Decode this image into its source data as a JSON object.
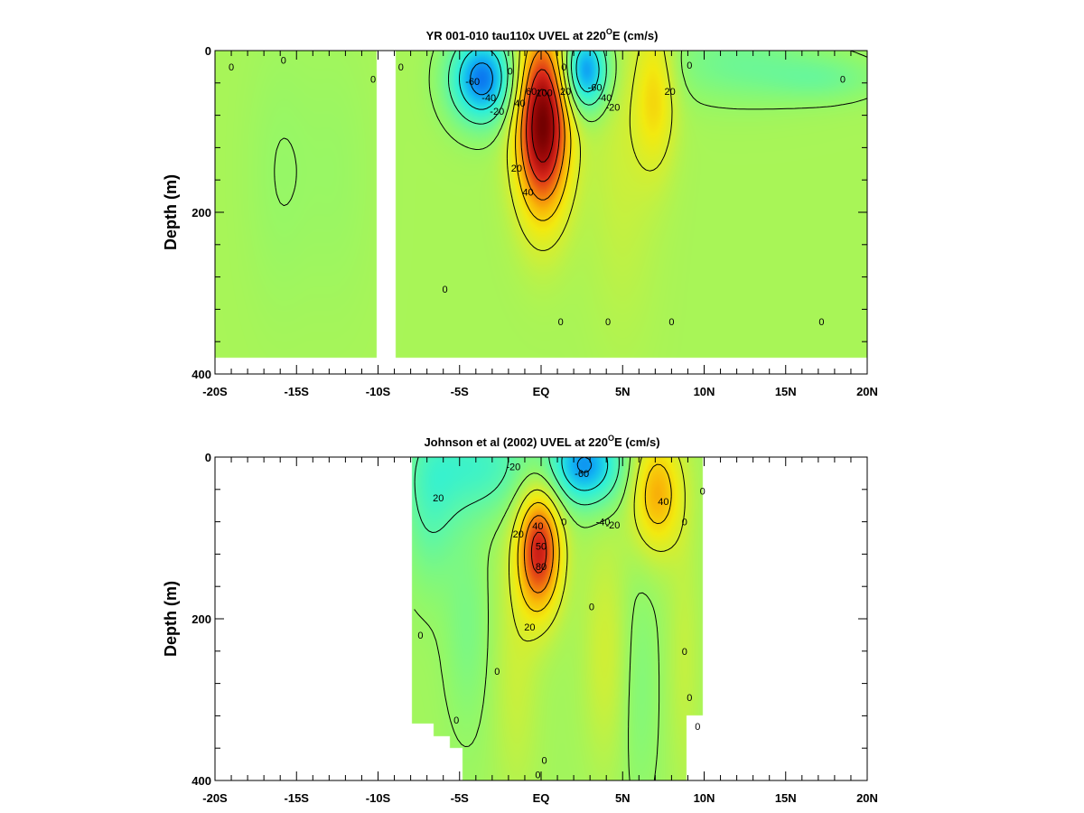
{
  "chart_data": [
    {
      "type": "heatmap",
      "title": "YR 001-010 tau110x UVEL at 220",
      "title_sup": "O",
      "title_end": "E (cm/s)",
      "xlabel": "",
      "ylabel": "Depth (m)",
      "x_ticklabels": [
        {
          "lat": -20,
          "label": "-20S"
        },
        {
          "lat": -15,
          "label": "-15S"
        },
        {
          "lat": -10,
          "label": "-10S"
        },
        {
          "lat": -5,
          "label": "-5S"
        },
        {
          "lat": 0,
          "label": "EQ"
        },
        {
          "lat": 5,
          "label": "5N"
        },
        {
          "lat": 10,
          "label": "10N"
        },
        {
          "lat": 15,
          "label": "15N"
        },
        {
          "lat": 20,
          "label": "20N"
        }
      ],
      "y_ticklabels": [
        {
          "depth": 0,
          "label": "0"
        },
        {
          "depth": 200,
          "label": "200"
        },
        {
          "depth": 400,
          "label": "400"
        }
      ],
      "xlim": [
        -20,
        20
      ],
      "ylim": [
        400,
        0
      ],
      "data_extent": {
        "depth_max": 380
      },
      "gaps": [
        {
          "lat_from": -10.1,
          "lat_to": -8.9
        }
      ],
      "background": 5,
      "features": [
        {
          "lat": 0.1,
          "depth": 90,
          "value": 115,
          "sx": 1.15,
          "sy": 78
        },
        {
          "lat": -3.6,
          "depth": 35,
          "value": -75,
          "sx": 1.4,
          "sy": 38
        },
        {
          "lat": 2.7,
          "depth": 25,
          "value": -72,
          "sx": 1.0,
          "sy": 35
        },
        {
          "lat": 7.0,
          "depth": 50,
          "value": 33,
          "sx": 0.9,
          "sy": 65
        },
        {
          "lat": 12.0,
          "depth": 15,
          "value": -18,
          "sx": 3.5,
          "sy": 35
        },
        {
          "lat": 17.5,
          "depth": 35,
          "value": -15,
          "sx": 2.5,
          "sy": 20
        },
        {
          "lat": 5.0,
          "depth": 120,
          "value": 10,
          "sx": 1.5,
          "sy": 150
        },
        {
          "lat": -16.0,
          "depth": 150,
          "value": -5,
          "sx": 1.5,
          "sy": 120
        },
        {
          "lat": -12.5,
          "depth": 150,
          "value": -4,
          "sx": 1.5,
          "sy": 120
        }
      ],
      "contour_labels": [
        {
          "lat": -19.0,
          "depth": 20,
          "text": "0"
        },
        {
          "lat": -15.8,
          "depth": 12,
          "text": "0"
        },
        {
          "lat": -10.3,
          "depth": 35,
          "text": "0"
        },
        {
          "lat": -8.6,
          "depth": 20,
          "text": "0"
        },
        {
          "lat": -4.2,
          "depth": 38,
          "text": "-60"
        },
        {
          "lat": -3.2,
          "depth": 58,
          "text": "-40"
        },
        {
          "lat": -2.7,
          "depth": 75,
          "text": "-20"
        },
        {
          "lat": -1.9,
          "depth": 25,
          "text": "0"
        },
        {
          "lat": -1.3,
          "depth": 65,
          "text": "40"
        },
        {
          "lat": -0.6,
          "depth": 50,
          "text": "60"
        },
        {
          "lat": 0.2,
          "depth": 52,
          "text": "100"
        },
        {
          "lat": -1.5,
          "depth": 145,
          "text": "20"
        },
        {
          "lat": -0.8,
          "depth": 175,
          "text": "40"
        },
        {
          "lat": 1.5,
          "depth": 50,
          "text": "20"
        },
        {
          "lat": 1.4,
          "depth": 20,
          "text": "0"
        },
        {
          "lat": 3.3,
          "depth": 45,
          "text": "-60"
        },
        {
          "lat": 3.9,
          "depth": 58,
          "text": "-40"
        },
        {
          "lat": 4.4,
          "depth": 70,
          "text": "-20"
        },
        {
          "lat": 7.9,
          "depth": 50,
          "text": "20"
        },
        {
          "lat": 9.1,
          "depth": 18,
          "text": "0"
        },
        {
          "lat": 18.5,
          "depth": 35,
          "text": "0"
        },
        {
          "lat": -5.9,
          "depth": 295,
          "text": "0"
        },
        {
          "lat": 1.2,
          "depth": 335,
          "text": "0"
        },
        {
          "lat": 4.1,
          "depth": 335,
          "text": "0"
        },
        {
          "lat": 8.0,
          "depth": 335,
          "text": "0"
        },
        {
          "lat": 17.2,
          "depth": 335,
          "text": "0"
        }
      ]
    },
    {
      "type": "heatmap",
      "title": "Johnson et al (2002) UVEL at 220",
      "title_sup": "O",
      "title_end": "E (cm/s)",
      "xlabel": "",
      "ylabel": "Depth (m)",
      "x_ticklabels": [
        {
          "lat": -20,
          "label": "-20S"
        },
        {
          "lat": -15,
          "label": "-15S"
        },
        {
          "lat": -10,
          "label": "-10S"
        },
        {
          "lat": -5,
          "label": "-5S"
        },
        {
          "lat": 0,
          "label": "EQ"
        },
        {
          "lat": 5,
          "label": "5N"
        },
        {
          "lat": 10,
          "label": "10N"
        },
        {
          "lat": 15,
          "label": "15N"
        },
        {
          "lat": 20,
          "label": "20N"
        }
      ],
      "y_ticklabels": [
        {
          "depth": 0,
          "label": "0"
        },
        {
          "depth": 200,
          "label": "200"
        },
        {
          "depth": 400,
          "label": "400"
        }
      ],
      "xlim": [
        -20,
        20
      ],
      "ylim": [
        400,
        0
      ],
      "data_extent": {
        "lat_min": -7.9,
        "lat_max": 9.9,
        "bottom": [
          {
            "lat": -7.9,
            "depth": 330
          },
          {
            "lat": -6.6,
            "depth": 330
          },
          {
            "lat": -6.6,
            "depth": 345
          },
          {
            "lat": -5.6,
            "depth": 345
          },
          {
            "lat": -5.6,
            "depth": 360
          },
          {
            "lat": -4.8,
            "depth": 360
          },
          {
            "lat": -4.8,
            "depth": 400
          },
          {
            "lat": 8.9,
            "depth": 400
          },
          {
            "lat": 8.9,
            "depth": 320
          },
          {
            "lat": 9.9,
            "depth": 320
          }
        ]
      },
      "background": 3,
      "features": [
        {
          "lat": -0.1,
          "depth": 115,
          "value": 85,
          "sx": 0.95,
          "sy": 55
        },
        {
          "lat": 2.7,
          "depth": 10,
          "value": -65,
          "sx": 1.6,
          "sy": 35
        },
        {
          "lat": -3.8,
          "depth": 10,
          "value": -32,
          "sx": 2.5,
          "sy": 45
        },
        {
          "lat": 7.1,
          "depth": 45,
          "value": 50,
          "sx": 1.1,
          "sy": 50
        },
        {
          "lat": -6.8,
          "depth": 60,
          "value": -22,
          "sx": 1.2,
          "sy": 70
        },
        {
          "lat": -4.5,
          "depth": 210,
          "value": -12,
          "sx": 1.0,
          "sy": 90
        },
        {
          "lat": -1.5,
          "depth": 260,
          "value": 12,
          "sx": 1.0,
          "sy": 120
        },
        {
          "lat": 4.0,
          "depth": 240,
          "value": 15,
          "sx": 1.0,
          "sy": 100
        },
        {
          "lat": 6.0,
          "depth": 280,
          "value": -10,
          "sx": 0.9,
          "sy": 110
        },
        {
          "lat": 8.8,
          "depth": 250,
          "value": 10,
          "sx": 0.7,
          "sy": 120
        }
      ],
      "contour_labels": [
        {
          "lat": -1.7,
          "depth": 12,
          "text": "-20"
        },
        {
          "lat": 2.5,
          "depth": 20,
          "text": "-60"
        },
        {
          "lat": -6.3,
          "depth": 50,
          "text": "20"
        },
        {
          "lat": 7.5,
          "depth": 55,
          "text": "40"
        },
        {
          "lat": 8.8,
          "depth": 80,
          "text": "0"
        },
        {
          "lat": 9.9,
          "depth": 42,
          "text": "0"
        },
        {
          "lat": -1.4,
          "depth": 95,
          "text": "20"
        },
        {
          "lat": -0.2,
          "depth": 85,
          "text": "40"
        },
        {
          "lat": 0.0,
          "depth": 110,
          "text": "50"
        },
        {
          "lat": 0.0,
          "depth": 135,
          "text": "80"
        },
        {
          "lat": 3.8,
          "depth": 80,
          "text": "-40"
        },
        {
          "lat": 4.4,
          "depth": 84,
          "text": "-20"
        },
        {
          "lat": 1.4,
          "depth": 80,
          "text": "0"
        },
        {
          "lat": -0.7,
          "depth": 210,
          "text": "20"
        },
        {
          "lat": 3.1,
          "depth": 185,
          "text": "0"
        },
        {
          "lat": -7.4,
          "depth": 220,
          "text": "0"
        },
        {
          "lat": -2.7,
          "depth": 265,
          "text": "0"
        },
        {
          "lat": -5.2,
          "depth": 325,
          "text": "0"
        },
        {
          "lat": 0.2,
          "depth": 375,
          "text": "0"
        },
        {
          "lat": 8.8,
          "depth": 240,
          "text": "0"
        },
        {
          "lat": 9.1,
          "depth": 297,
          "text": "0"
        },
        {
          "lat": 9.6,
          "depth": 333,
          "text": "0"
        },
        {
          "lat": -0.2,
          "depth": 393,
          "text": "0"
        }
      ]
    }
  ],
  "colors": {
    "colormap": [
      "#1a1fd6",
      "#0a6cf0",
      "#12b8f2",
      "#2ef0d8",
      "#5cf7a8",
      "#8ff86c",
      "#c9f03c",
      "#f2ea10",
      "#f9b808",
      "#f07010",
      "#d8281a",
      "#a40a0a",
      "#700000"
    ],
    "colormap_min": -90,
    "colormap_max": 120,
    "contour_line": "#000000",
    "axis": "#000000"
  }
}
